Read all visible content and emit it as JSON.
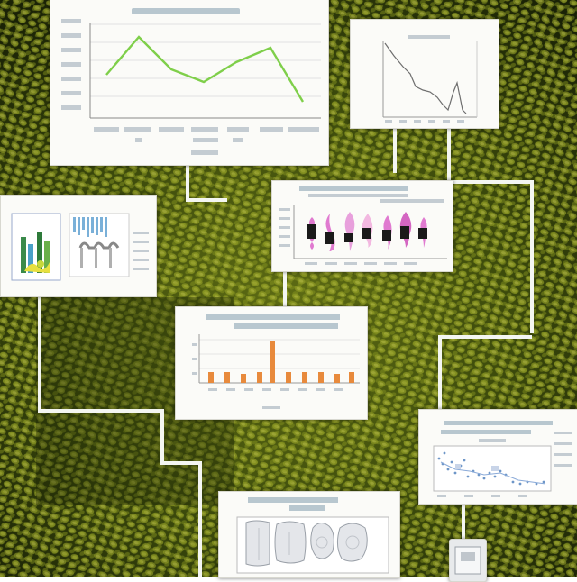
{
  "colors": {
    "background_dark": "#1c2408",
    "background_light": "#7d8a1e",
    "mesh": "#0e1404",
    "card": "#fbfbf8",
    "connector": "#f4f6f2",
    "green_line": "#7fcf4a",
    "gray_line": "#6e6e6e",
    "orange_bar": "#e88a3c",
    "violin_pink": "#e07ad0",
    "violin_black": "#1a1a1a",
    "scatter_blue": "#6e96c8"
  },
  "cards": [
    {
      "id": "line-chart-green",
      "icon": "line-chart-icon"
    },
    {
      "id": "line-chart-small",
      "icon": "line-chart-icon"
    },
    {
      "id": "violin-plot",
      "icon": "violin-plot-icon"
    },
    {
      "id": "bar-chart-panels",
      "icon": "bar-chart-icon"
    },
    {
      "id": "bar-chart-orange",
      "icon": "bar-chart-icon"
    },
    {
      "id": "scatter-chart",
      "icon": "scatter-chart-icon"
    },
    {
      "id": "shape-gallery",
      "icon": "image-icon"
    },
    {
      "id": "device-stub",
      "icon": "device-icon"
    }
  ]
}
